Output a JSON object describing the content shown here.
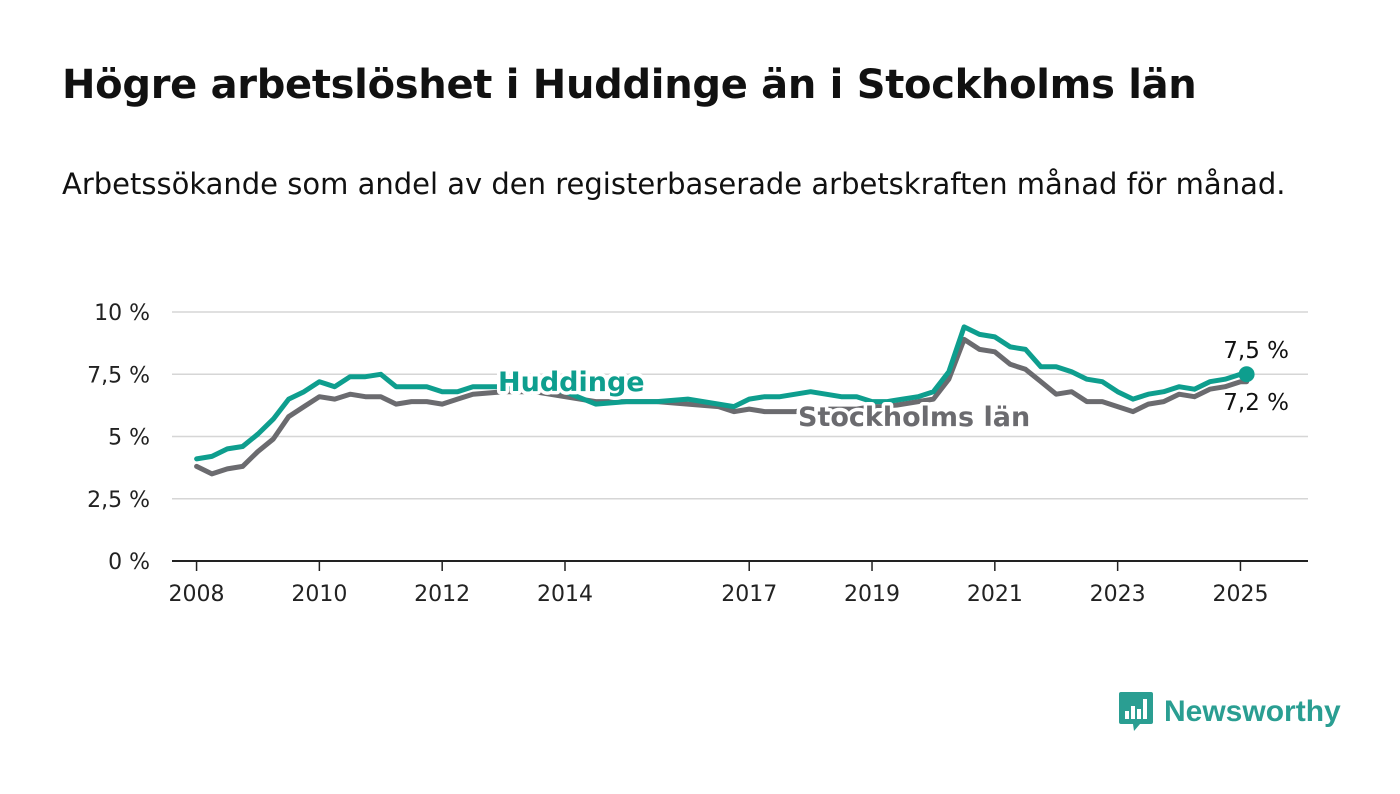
{
  "title": "Högre arbetslöshet i Huddinge än i Stockholms län",
  "subtitle": "Arbetssökande som andel av den registerbaserade arbetskraften månad för månad.",
  "brand": {
    "name": "Newsworthy",
    "icon": "newsworthy-logo-icon",
    "color": "#2a9e92"
  },
  "chart_data": {
    "type": "line",
    "title": "Högre arbetslöshet i Huddinge än i Stockholms län",
    "subtitle": "Arbetssökande som andel av den registerbaserade arbetskraften månad för månad.",
    "xlabel": "",
    "ylabel": "",
    "ylim": [
      0,
      10
    ],
    "xlim": [
      2007.6,
      2026.1
    ],
    "y_ticks": [
      0,
      2.5,
      5,
      7.5,
      10
    ],
    "y_tick_labels": [
      "0 %",
      "2,5 %",
      "5 %",
      "7,5 %",
      "10 %"
    ],
    "x_ticks": [
      2008,
      2010,
      2012,
      2014,
      2017,
      2019,
      2021,
      2023,
      2025
    ],
    "x_tick_labels": [
      "2008",
      "2010",
      "2012",
      "2014",
      "2017",
      "2019",
      "2021",
      "2023",
      "2025"
    ],
    "grid": true,
    "legend": "inline labels",
    "series": [
      {
        "name": "Huddinge",
        "color": "#0e9e8e",
        "end_label": "7,5 %",
        "x": [
          2008.0,
          2008.25,
          2008.5,
          2008.75,
          2009.0,
          2009.25,
          2009.5,
          2009.75,
          2010.0,
          2010.25,
          2010.5,
          2010.75,
          2011.0,
          2011.25,
          2011.5,
          2011.75,
          2012.0,
          2012.25,
          2012.5,
          2013.0,
          2013.5,
          2014.0,
          2014.5,
          2015.0,
          2015.5,
          2016.0,
          2016.5,
          2016.75,
          2017.0,
          2017.25,
          2017.5,
          2017.75,
          2018.0,
          2018.25,
          2018.5,
          2018.75,
          2019.0,
          2019.25,
          2019.5,
          2019.75,
          2020.0,
          2020.25,
          2020.5,
          2020.75,
          2021.0,
          2021.25,
          2021.5,
          2021.75,
          2022.0,
          2022.25,
          2022.5,
          2022.75,
          2023.0,
          2023.25,
          2023.5,
          2023.75,
          2024.0,
          2024.25,
          2024.5,
          2024.75,
          2025.0,
          2025.1
        ],
        "y": [
          4.1,
          4.2,
          4.5,
          4.6,
          5.1,
          5.7,
          6.5,
          6.8,
          7.2,
          7.0,
          7.4,
          7.4,
          7.5,
          7.0,
          7.0,
          7.0,
          6.8,
          6.8,
          7.0,
          7.0,
          7.0,
          6.8,
          6.3,
          6.4,
          6.4,
          6.5,
          6.3,
          6.2,
          6.5,
          6.6,
          6.6,
          6.7,
          6.8,
          6.7,
          6.6,
          6.6,
          6.4,
          6.4,
          6.5,
          6.6,
          6.8,
          7.6,
          9.4,
          9.1,
          9.0,
          8.6,
          8.5,
          7.8,
          7.8,
          7.6,
          7.3,
          7.2,
          6.8,
          6.5,
          6.7,
          6.8,
          7.0,
          6.9,
          7.2,
          7.3,
          7.5,
          7.5
        ]
      },
      {
        "name": "Stockholms län",
        "color": "#6b6b6f",
        "end_label": "7,2 %",
        "x": [
          2008.0,
          2008.25,
          2008.5,
          2008.75,
          2009.0,
          2009.25,
          2009.5,
          2009.75,
          2010.0,
          2010.25,
          2010.5,
          2010.75,
          2011.0,
          2011.25,
          2011.5,
          2011.75,
          2012.0,
          2012.25,
          2012.5,
          2013.0,
          2013.5,
          2014.0,
          2014.5,
          2015.0,
          2015.5,
          2016.0,
          2016.5,
          2016.75,
          2017.0,
          2017.25,
          2017.5,
          2017.75,
          2018.0,
          2018.25,
          2018.5,
          2018.75,
          2019.0,
          2019.25,
          2019.5,
          2019.75,
          2020.0,
          2020.25,
          2020.5,
          2020.75,
          2021.0,
          2021.25,
          2021.5,
          2021.75,
          2022.0,
          2022.25,
          2022.5,
          2022.75,
          2023.0,
          2023.25,
          2023.5,
          2023.75,
          2024.0,
          2024.25,
          2024.5,
          2024.75,
          2025.0,
          2025.1
        ],
        "y": [
          3.8,
          3.5,
          3.7,
          3.8,
          4.4,
          4.9,
          5.8,
          6.2,
          6.6,
          6.5,
          6.7,
          6.6,
          6.6,
          6.3,
          6.4,
          6.4,
          6.3,
          6.5,
          6.7,
          6.8,
          6.8,
          6.6,
          6.4,
          6.4,
          6.4,
          6.3,
          6.2,
          6.0,
          6.1,
          6.0,
          6.0,
          6.0,
          6.1,
          6.1,
          6.1,
          6.1,
          6.2,
          6.2,
          6.3,
          6.4,
          6.5,
          7.3,
          8.9,
          8.5,
          8.4,
          7.9,
          7.7,
          7.2,
          6.7,
          6.8,
          6.4,
          6.4,
          6.2,
          6.0,
          6.3,
          6.4,
          6.7,
          6.6,
          6.9,
          7.0,
          7.2,
          7.2
        ]
      }
    ]
  }
}
